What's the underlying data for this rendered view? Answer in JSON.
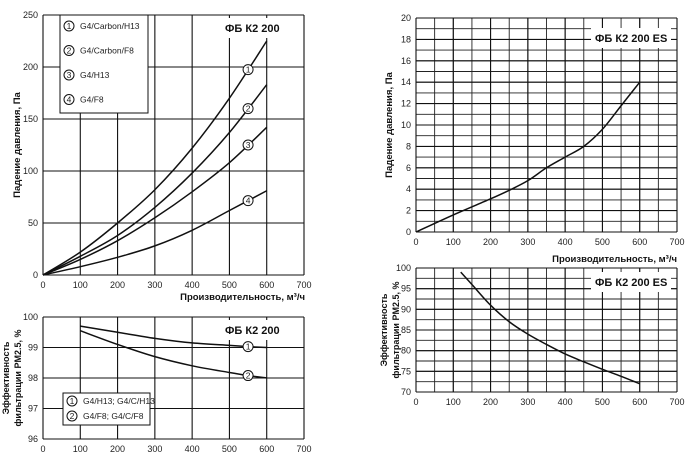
{
  "chart_data": [
    {
      "type": "line",
      "title": "ФБ К2 200",
      "xlabel": "Производительность, м³/ч",
      "ylabel": "Падение давления, Па",
      "xlim": [
        0,
        700
      ],
      "ylim": [
        0,
        250
      ],
      "xticks": [
        0,
        100,
        200,
        300,
        400,
        500,
        600,
        700
      ],
      "yticks": [
        0,
        50,
        100,
        150,
        200,
        250
      ],
      "grid": true,
      "legend_position": "top-left",
      "series": [
        {
          "name": "G4/Carbon/H13",
          "marker": "1",
          "x": [
            0,
            100,
            200,
            300,
            400,
            500,
            600
          ],
          "y": [
            0,
            22,
            50,
            82,
            122,
            170,
            225
          ]
        },
        {
          "name": "G4/Carbon/F8",
          "marker": "2",
          "x": [
            0,
            100,
            200,
            300,
            400,
            500,
            600
          ],
          "y": [
            0,
            18,
            38,
            65,
            98,
            137,
            183
          ]
        },
        {
          "name": "G4/H13",
          "marker": "3",
          "x": [
            0,
            100,
            200,
            300,
            400,
            500,
            600
          ],
          "y": [
            0,
            15,
            33,
            55,
            80,
            108,
            142
          ]
        },
        {
          "name": "G4/F8",
          "marker": "4",
          "x": [
            0,
            100,
            200,
            300,
            400,
            500,
            600
          ],
          "y": [
            0,
            8,
            17,
            28,
            43,
            62,
            81
          ]
        }
      ]
    },
    {
      "type": "line",
      "title": "ФБ К2 200",
      "xlabel": "",
      "ylabel": "Эффективность фильтрации PM2.5, %",
      "xlim": [
        0,
        700
      ],
      "ylim": [
        96,
        100
      ],
      "xticks": [
        0,
        100,
        200,
        300,
        400,
        500,
        600,
        700
      ],
      "yticks": [
        96,
        97,
        98,
        99,
        100
      ],
      "grid": true,
      "legend_position": "bottom-left",
      "series": [
        {
          "name": "G4/H13; G4/C/H13",
          "marker": "1",
          "x": [
            100,
            200,
            300,
            400,
            500,
            550,
            600
          ],
          "y": [
            99.7,
            99.5,
            99.3,
            99.15,
            99.07,
            99.03,
            99.0
          ]
        },
        {
          "name": "G4/F8; G4/C/F8",
          "marker": "2",
          "x": [
            100,
            200,
            300,
            400,
            500,
            550,
            600
          ],
          "y": [
            99.55,
            99.1,
            98.7,
            98.4,
            98.18,
            98.08,
            98.0
          ]
        }
      ]
    },
    {
      "type": "line",
      "title": "ФБ К2 200 ES",
      "xlabel": "Производительность, м³/ч",
      "ylabel": "Падение давления, Па",
      "xlim": [
        0,
        700
      ],
      "ylim": [
        0,
        20
      ],
      "xticks": [
        0,
        100,
        200,
        300,
        400,
        500,
        600,
        700
      ],
      "yticks": [
        0,
        2,
        4,
        6,
        8,
        10,
        12,
        14,
        16,
        18,
        20
      ],
      "grid": true,
      "series": [
        {
          "name": "ФБ К2 200 ES",
          "x": [
            0,
            100,
            200,
            250,
            300,
            350,
            400,
            450,
            500,
            550,
            600
          ],
          "y": [
            0,
            1.6,
            3.1,
            3.9,
            4.8,
            6,
            7,
            8,
            9.6,
            11.8,
            14
          ]
        }
      ]
    },
    {
      "type": "line",
      "title": "ФБ К2 200 ES",
      "xlabel": "",
      "ylabel": "Эффективность фильтрации PM2.5, %",
      "xlim": [
        0,
        700
      ],
      "ylim": [
        70,
        100
      ],
      "xticks": [
        0,
        100,
        200,
        300,
        400,
        500,
        600,
        700
      ],
      "yticks": [
        70,
        75,
        80,
        85,
        90,
        95,
        100
      ],
      "grid": true,
      "series": [
        {
          "name": "ФБ К2 200 ES",
          "x": [
            120,
            150,
            200,
            250,
            300,
            350,
            400,
            450,
            500,
            550,
            600
          ],
          "y": [
            99,
            96,
            91,
            87,
            84,
            81.5,
            79.2,
            77.3,
            75.5,
            73.8,
            72
          ]
        }
      ]
    }
  ]
}
